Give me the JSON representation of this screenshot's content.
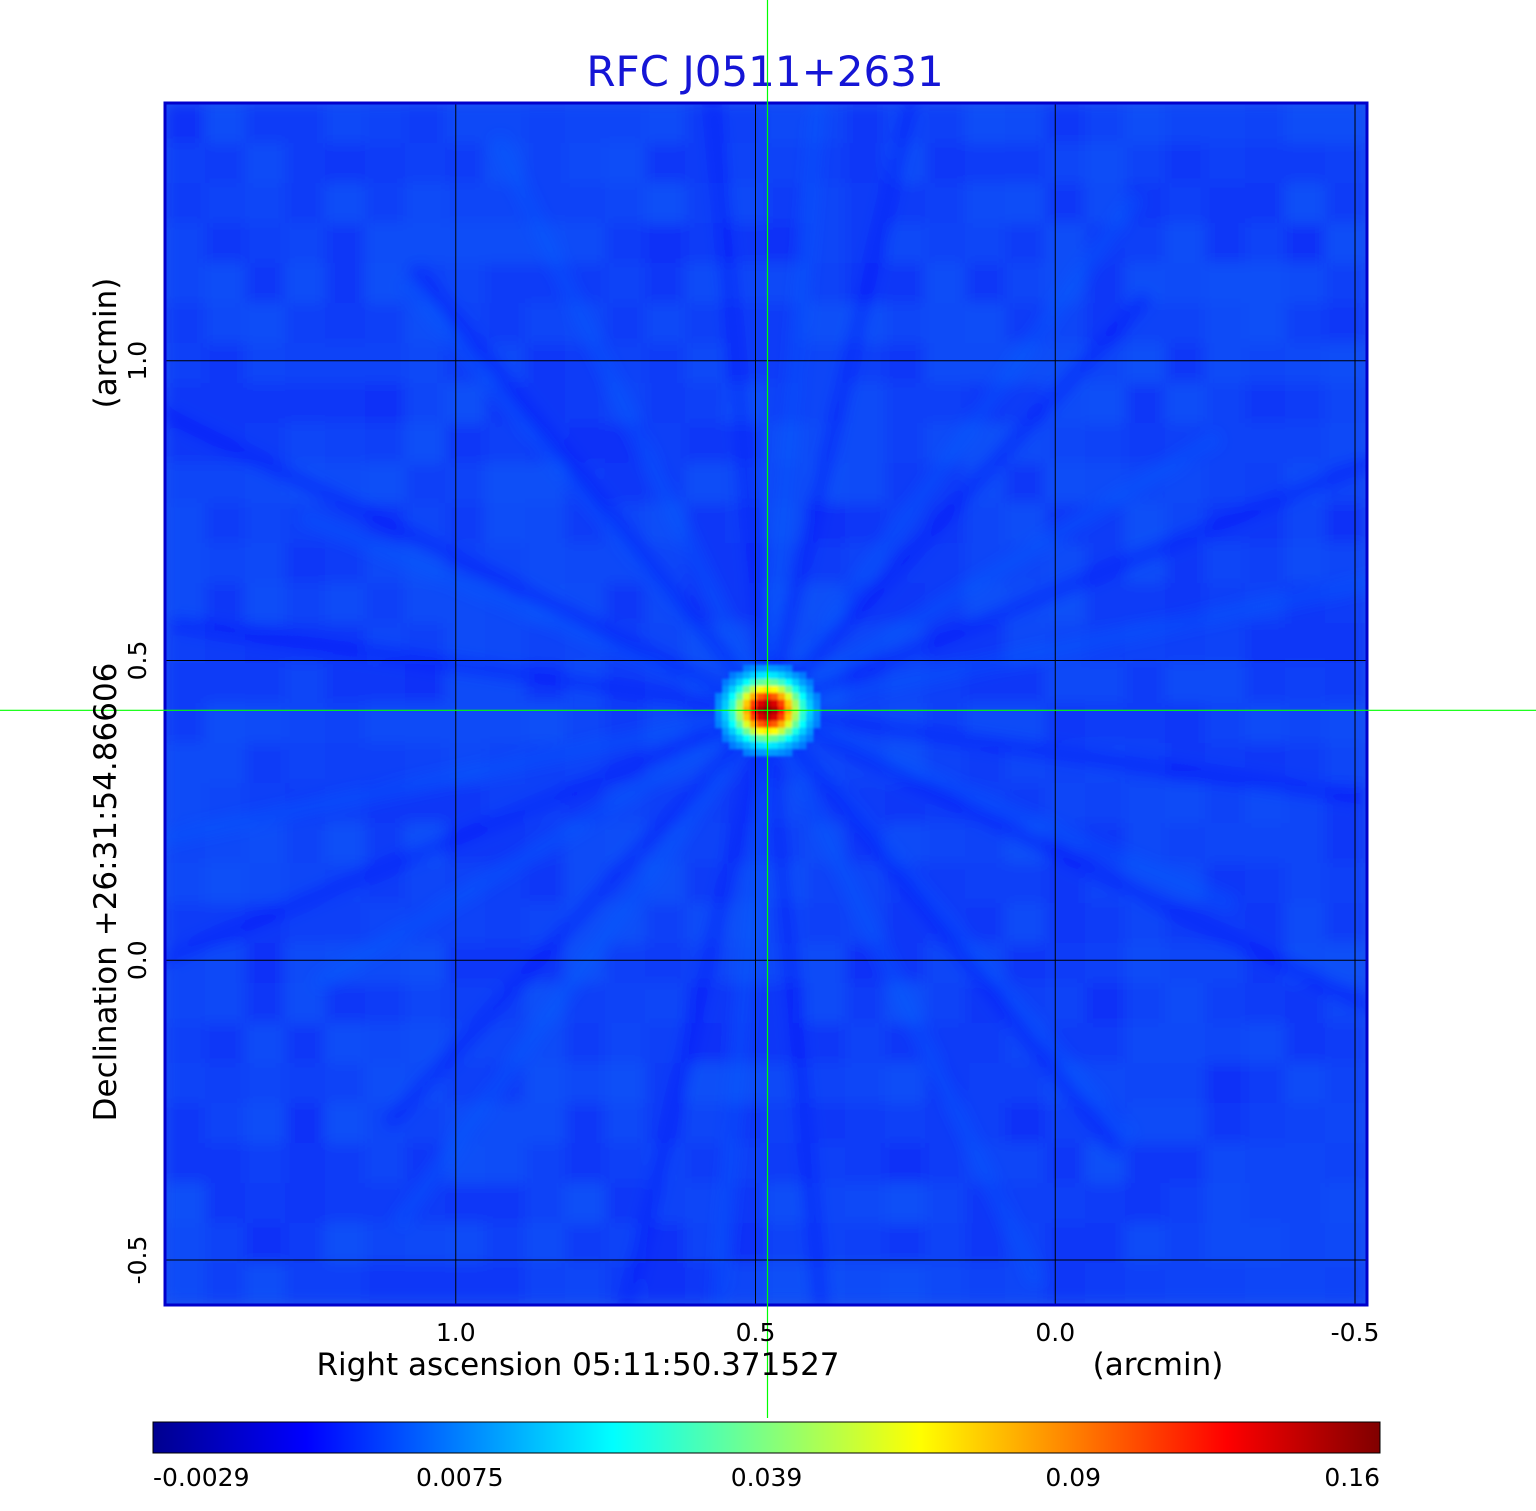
{
  "chart_data": {
    "type": "heatmap",
    "title": "RFC J0511+2631",
    "xlabel": "Right ascension  05:11:50.371527",
    "xunit": "(arcmin)",
    "ylabel": "Declination  +26:31:54.86606",
    "yunit": "(arcmin)",
    "xlim": [
      1.485,
      -0.52
    ],
    "ylim": [
      -0.575,
      1.43
    ],
    "x_ticks": [
      {
        "value": 1.0,
        "label": "1.0"
      },
      {
        "value": 0.5,
        "label": "0.5"
      },
      {
        "value": 0.0,
        "label": "0.0"
      },
      {
        "value": -0.5,
        "label": "-0.5"
      }
    ],
    "y_ticks": [
      {
        "value": 1.0,
        "label": "1.0"
      },
      {
        "value": 0.5,
        "label": "0.5"
      },
      {
        "value": 0.0,
        "label": "0.0"
      },
      {
        "value": -0.5,
        "label": "-0.5"
      }
    ],
    "grid": true,
    "crosshair": {
      "x": 0.48,
      "y": 0.417
    },
    "source": {
      "x": 0.48,
      "y": 0.417,
      "peak": 0.16
    },
    "colorbar": {
      "orientation": "horizontal",
      "ticks": [
        "-0.0029",
        "0.0075",
        "0.039",
        "0.09",
        "0.16"
      ],
      "colormap": [
        "#00008f",
        "#0000ff",
        "#0080ff",
        "#00ffff",
        "#80ff80",
        "#ffff00",
        "#ff8000",
        "#ff0000",
        "#800000"
      ]
    },
    "background_value": 0.003,
    "colors": {
      "title": "#1515d6",
      "grid": "#000000",
      "crosshair": "#00ff00",
      "frame": "#0000cc",
      "background": "#1f55ee"
    }
  }
}
